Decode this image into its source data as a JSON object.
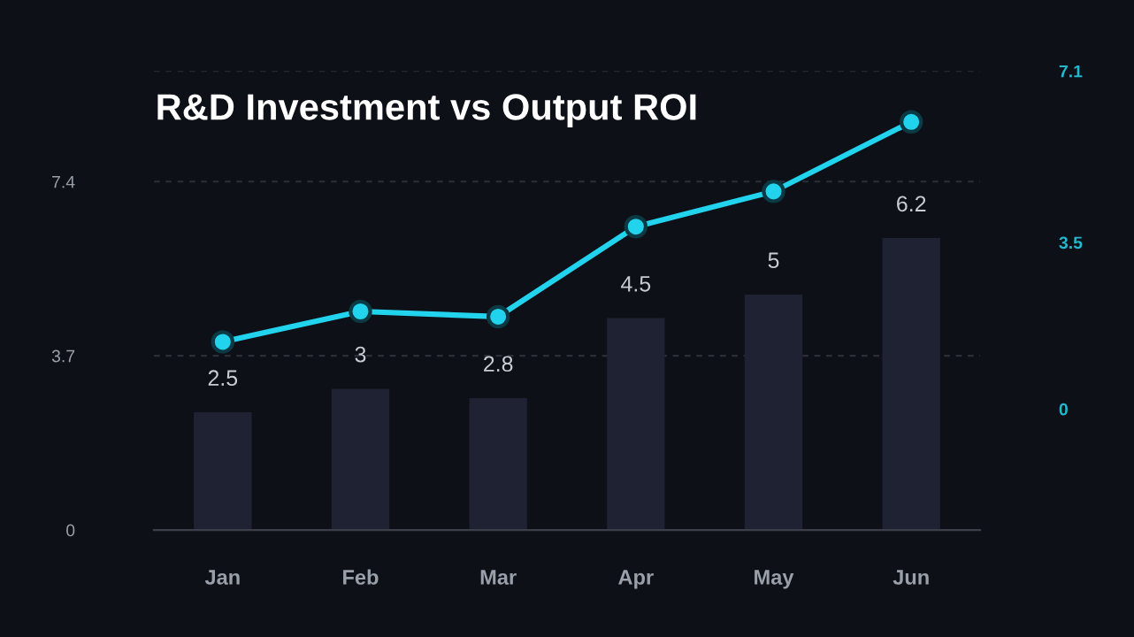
{
  "chart_data": {
    "type": "bar",
    "title": "R&D Investment vs Output ROI",
    "categories": [
      "Jan",
      "Feb",
      "Mar",
      "Apr",
      "May",
      "Jun"
    ],
    "series": [
      {
        "color": "#1e2232",
        "values": [
          2.5,
          3,
          2.8,
          4.5,
          5,
          6.2
        ],
        "value_labels": [
          "2.5",
          "3",
          "2.8",
          "4.5",
          "5",
          "6.2"
        ]
      },
      {
        "type": "line",
        "axis": "y2",
        "color": "#22d3ee",
        "values": [
          1.41,
          2.05,
          1.94,
          3.83,
          4.57,
          6.03
        ],
        "marker": "circle"
      }
    ],
    "ylim": [
      0,
      9.75
    ],
    "yticks": [
      0,
      3.7,
      7.4,
      {
        "value": 9.75,
        "label": null
      }
    ],
    "y2lim": [
      -2.54,
      7.1
    ],
    "y2ticks": [
      0,
      3.5,
      7.1
    ],
    "grid": "y"
  }
}
